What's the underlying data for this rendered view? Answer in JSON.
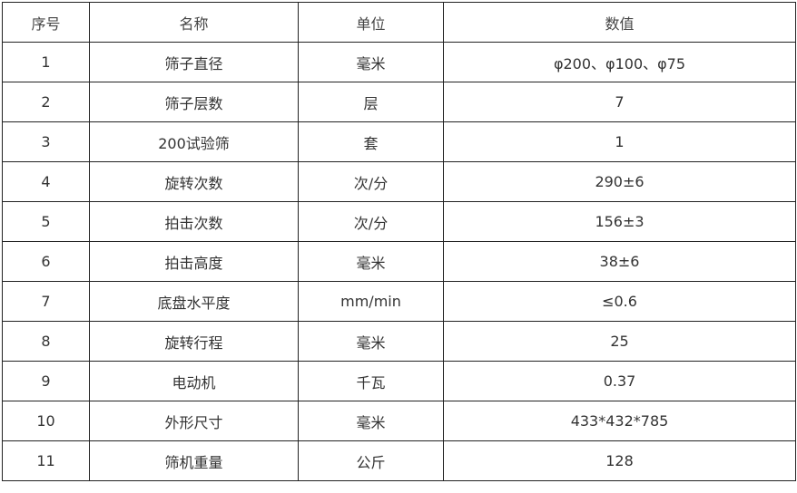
{
  "table": {
    "header": [
      "序号",
      "名称",
      "单位",
      "数值"
    ],
    "rows": [
      [
        "1",
        "筛子直径",
        "毫米",
        "φ200、φ100、φ75"
      ],
      [
        "2",
        "筛子层数",
        "层",
        "7"
      ],
      [
        "3",
        "200试验筛",
        "套",
        "1"
      ],
      [
        "4",
        "旋转次数",
        "次/分",
        "290±6"
      ],
      [
        "5",
        "拍击次数",
        "次/分",
        "156±3"
      ],
      [
        "6",
        "拍击高度",
        "毫米",
        "38±6"
      ],
      [
        "7",
        "底盘水平度",
        "mm/min",
        "≤0.6"
      ],
      [
        "8",
        "旋转行程",
        "毫米",
        "25"
      ],
      [
        "9",
        "电动机",
        "千瓦",
        "0.37"
      ],
      [
        "10",
        "外形尺寸",
        "毫米",
        "433*432*785"
      ],
      [
        "11",
        "筛机重量",
        "公斤",
        "128"
      ]
    ]
  }
}
